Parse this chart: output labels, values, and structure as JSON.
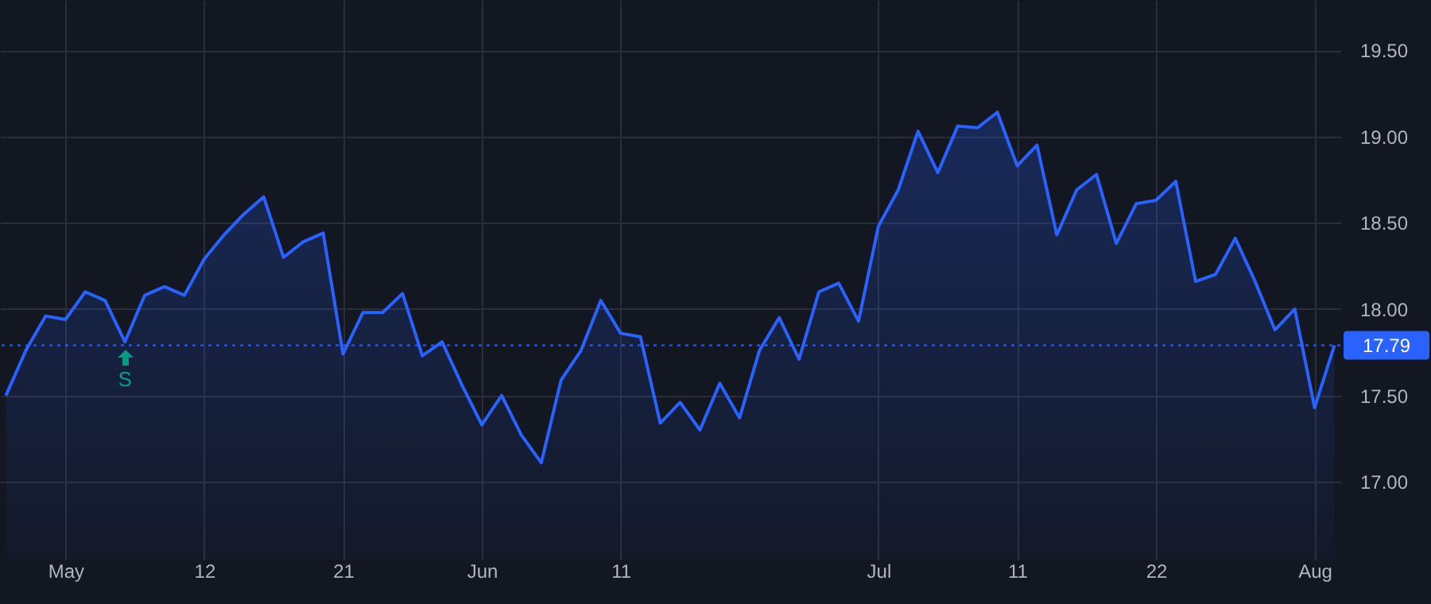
{
  "chart_data": {
    "type": "area",
    "categories": [
      null,
      null,
      null,
      "May",
      null,
      null,
      null,
      null,
      null,
      null,
      "12",
      null,
      null,
      null,
      null,
      null,
      null,
      "21",
      null,
      null,
      null,
      null,
      null,
      null,
      "Jun",
      null,
      null,
      null,
      null,
      null,
      null,
      "11",
      null,
      null,
      null,
      null,
      null,
      null,
      null,
      null,
      null,
      null,
      null,
      null,
      "Jul",
      null,
      null,
      null,
      null,
      null,
      null,
      "11",
      null,
      null,
      null,
      null,
      null,
      null,
      "22",
      null,
      null,
      null,
      null,
      null,
      null,
      null,
      "Aug",
      null
    ],
    "series": [
      {
        "color": "#2962ff",
        "values": [
          17.5,
          17.76,
          17.96,
          17.94,
          18.1,
          18.05,
          17.81,
          18.08,
          18.13,
          18.08,
          18.29,
          18.43,
          18.55,
          18.65,
          18.3,
          18.39,
          18.44,
          17.74,
          17.98,
          17.98,
          18.09,
          17.73,
          17.81,
          17.56,
          17.33,
          17.5,
          17.27,
          17.11,
          17.59,
          17.76,
          18.05,
          17.86,
          17.84,
          17.34,
          17.46,
          17.3,
          17.57,
          17.37,
          17.76,
          17.95,
          17.71,
          18.1,
          18.15,
          17.93,
          18.48,
          18.69,
          19.03,
          18.79,
          19.06,
          19.05,
          19.14,
          18.83,
          18.95,
          18.43,
          18.69,
          18.78,
          18.38,
          18.61,
          18.63,
          18.74,
          18.16,
          18.2,
          18.41,
          18.16,
          17.88,
          18.0,
          17.43,
          17.79
        ]
      }
    ],
    "ylim": [
      16.55,
      19.79
    ],
    "yticks": [
      {
        "value": 17,
        "label": "17.00"
      },
      {
        "value": 17.5,
        "label": "17.50"
      },
      {
        "value": 18,
        "label": "18.00"
      },
      {
        "value": 18.5,
        "label": "18.50"
      },
      {
        "value": 19,
        "label": "19.00"
      },
      {
        "value": 19.5,
        "label": "19.50"
      }
    ],
    "ref_lines": [
      {
        "axis": "y",
        "value": 17.79,
        "label": "17.79",
        "color": "#2962ff",
        "line_style": "dotted"
      }
    ],
    "annotations": [
      {
        "text": "S",
        "y": 17.81
      }
    ],
    "grid": true
  }
}
